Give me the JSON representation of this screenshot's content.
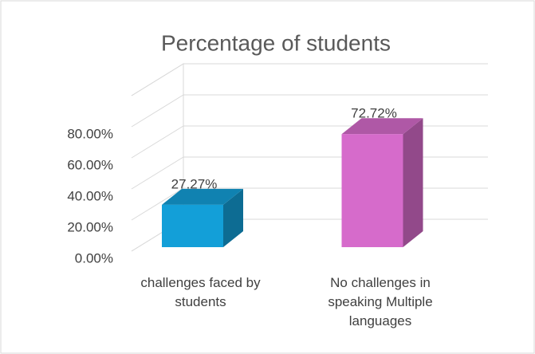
{
  "chart_data": {
    "type": "bar3d",
    "title": "Percentage of students",
    "categories": [
      "challenges faced by students",
      "No challenges in speaking Multiple languages"
    ],
    "values": [
      27.27,
      72.72
    ],
    "value_labels": [
      "27.27%",
      "72.72%"
    ],
    "colors": [
      "#139fd8",
      "#d66bcb"
    ],
    "ylim": [
      0,
      100
    ],
    "yticks": [
      {
        "value": 0,
        "label": "0.00%"
      },
      {
        "value": 20,
        "label": "20.00%"
      },
      {
        "value": 40,
        "label": "40.00%"
      },
      {
        "value": 60,
        "label": "60.00%"
      },
      {
        "value": 80,
        "label": "80.00%"
      }
    ],
    "grid": true
  }
}
